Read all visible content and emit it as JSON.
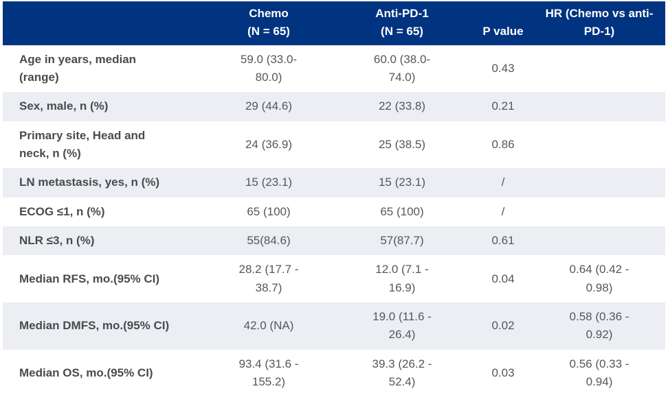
{
  "colors": {
    "header_bg": "#003380",
    "header_text": "#ffffff",
    "row_alt_bg": "#eceef3",
    "label_text": "#4a4b4d",
    "value_text": "#55565a"
  },
  "table": {
    "header": {
      "label": "",
      "chemo": "Chemo\n(N = 65)",
      "anti_pd1": "Anti-PD-1\n(N = 65)",
      "p_value": "P value",
      "hr": "HR (Chemo vs anti-\nPD-1)"
    },
    "rows": [
      {
        "label": "Age in years, median\n(range)",
        "chemo": "59.0  (33.0-\n80.0)",
        "anti_pd1": "60.0  (38.0-\n74.0)",
        "p_value": "0.43",
        "hr": ""
      },
      {
        "label": "Sex, male, n (%)",
        "chemo": "29  (44.6)",
        "anti_pd1": "22  (33.8)",
        "p_value": "0.21",
        "hr": ""
      },
      {
        "label": "Primary site, Head and\nneck, n (%)",
        "chemo": "24  (36.9)",
        "anti_pd1": "25  (38.5)",
        "p_value": "0.86",
        "hr": ""
      },
      {
        "label": "LN metastasis, yes, n (%)",
        "chemo": "15  (23.1)",
        "anti_pd1": "15  (23.1)",
        "p_value": "/",
        "hr": ""
      },
      {
        "label": "ECOG ≤1, n (%)",
        "chemo": "65  (100)",
        "anti_pd1": "65  (100)",
        "p_value": "/",
        "hr": ""
      },
      {
        "label": "NLR ≤3, n (%)",
        "chemo": "55(84.6)",
        "anti_pd1": "57(87.7)",
        "p_value": "0.61",
        "hr": ""
      },
      {
        "label": "Median RFS, mo.(95% CI)",
        "chemo": "28.2 (17.7 -\n38.7)",
        "anti_pd1": "12.0 (7.1 -\n16.9)",
        "p_value": "0.04",
        "hr": "0.64 (0.42 -\n0.98)"
      },
      {
        "label": "Median DMFS, mo.(95% CI)",
        "chemo": "42.0 (NA)",
        "anti_pd1": "19.0 (11.6 -\n26.4)",
        "p_value": "0.02",
        "hr": "0.58 (0.36 -\n0.92)"
      },
      {
        "label": "Median OS, mo.(95% CI)",
        "chemo": "93.4 (31.6 -\n155.2)",
        "anti_pd1": "39.3 (26.2 -\n52.4)",
        "p_value": "0.03",
        "hr": "0.56 (0.33 -\n0.94)"
      }
    ]
  }
}
